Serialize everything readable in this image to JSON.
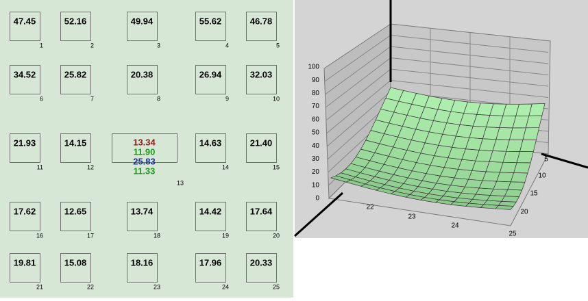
{
  "cells": [
    {
      "index": "1",
      "values": [
        {
          "text": "47.45"
        }
      ]
    },
    {
      "index": "2",
      "values": [
        {
          "text": "52.16"
        }
      ]
    },
    {
      "index": "3",
      "values": [
        {
          "text": "49.94"
        }
      ]
    },
    {
      "index": "4",
      "values": [
        {
          "text": "55.62"
        }
      ]
    },
    {
      "index": "5",
      "values": [
        {
          "text": "46.78"
        }
      ]
    },
    {
      "index": "6",
      "values": [
        {
          "text": "34.52"
        }
      ]
    },
    {
      "index": "7",
      "values": [
        {
          "text": "25.82"
        }
      ]
    },
    {
      "index": "8",
      "values": [
        {
          "text": "20.38"
        }
      ]
    },
    {
      "index": "9",
      "values": [
        {
          "text": "26.94"
        }
      ]
    },
    {
      "index": "10",
      "values": [
        {
          "text": "32.03"
        }
      ]
    },
    {
      "index": "11",
      "values": [
        {
          "text": "21.93"
        }
      ]
    },
    {
      "index": "12",
      "values": [
        {
          "text": "14.15"
        }
      ]
    },
    {
      "index": "13",
      "values": [
        {
          "text": "13.34",
          "color": "#8b1c1c"
        },
        {
          "text": "11.90",
          "color": "#1f9a1f"
        },
        {
          "text": "25.83",
          "color": "#1f2f9a"
        },
        {
          "text": "11.33",
          "color": "#1f9a1f"
        }
      ]
    },
    {
      "index": "14",
      "values": [
        {
          "text": "14.63"
        }
      ]
    },
    {
      "index": "15",
      "values": [
        {
          "text": "21.40"
        }
      ]
    },
    {
      "index": "16",
      "values": [
        {
          "text": "17.62"
        }
      ]
    },
    {
      "index": "17",
      "values": [
        {
          "text": "12.65"
        }
      ]
    },
    {
      "index": "18",
      "values": [
        {
          "text": "13.74"
        }
      ]
    },
    {
      "index": "19",
      "values": [
        {
          "text": "14.42"
        }
      ]
    },
    {
      "index": "20",
      "values": [
        {
          "text": "17.64"
        }
      ]
    },
    {
      "index": "21",
      "values": [
        {
          "text": "19.81"
        }
      ]
    },
    {
      "index": "22",
      "values": [
        {
          "text": "15.08"
        }
      ]
    },
    {
      "index": "23",
      "values": [
        {
          "text": "18.16"
        }
      ]
    },
    {
      "index": "24",
      "values": [
        {
          "text": "17.96"
        }
      ]
    },
    {
      "index": "25",
      "values": [
        {
          "text": "20.33"
        }
      ]
    }
  ],
  "plot": {
    "z_ticks": [
      "0",
      "10",
      "20",
      "30",
      "40",
      "50",
      "60",
      "70",
      "80",
      "90",
      "100"
    ],
    "x_ticks": [
      "22",
      "23",
      "24"
    ],
    "y_ticks": [
      "5",
      "10",
      "15",
      "20",
      "25"
    ]
  }
}
